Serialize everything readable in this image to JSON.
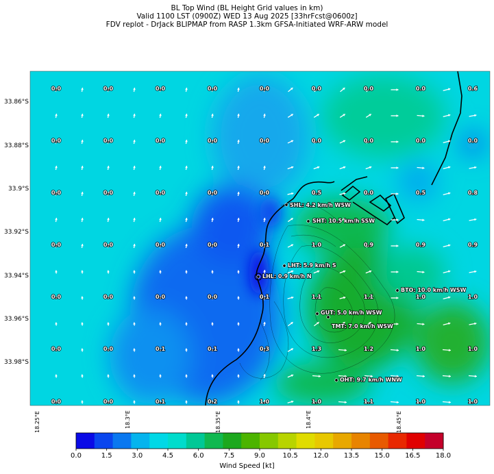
{
  "header": {
    "line1": "BL Top Wind (BL Height Grid values in km)",
    "line2": "Valid 1100 LST (0900Z) WED 13 Aug 2025 [33hrFcst@0600z]",
    "line3": "FDV replot - DrJack BLIPMAP from RASP 1.3km GFSA-Initiated WRF-ARW model"
  },
  "axes": {
    "y_labels": [
      "33.86°S",
      "33.88°S",
      "33.9°S",
      "33.92°S",
      "33.94°S",
      "33.96°S",
      "33.98°S"
    ],
    "x_labels": [
      "18.25°E",
      "18.3°E",
      "18.35°E",
      "18.4°E",
      "18.45°E"
    ]
  },
  "grid_values": [
    [
      "0.0",
      "0.0",
      "0.0",
      "0.0",
      "0.0",
      "0.0",
      "0.0",
      "0.0",
      "0.6"
    ],
    [
      "0.0",
      "0.0",
      "0.0",
      "0.0",
      "0.0",
      "0.0",
      "0.0",
      "0.0",
      "0.0"
    ],
    [
      "0.0",
      "0.0",
      "0.0",
      "0.0",
      "0.0",
      "0.5",
      "0.0",
      "0.5",
      "0.8"
    ],
    [
      "0.0",
      "0.0",
      "0.0",
      "0.0",
      "0.1",
      "1.0",
      "0.9",
      "0.9",
      "0.9"
    ],
    [
      "0.0",
      "0.0",
      "0.0",
      "0.0",
      "0.1",
      "1.1",
      "1.1",
      "1.0",
      "1.0"
    ],
    [
      "0.0",
      "0.0",
      "0.1",
      "0.1",
      "0.3",
      "1.3",
      "1.2",
      "1.0",
      "1.0"
    ],
    [
      "0.0",
      "0.0",
      "0.1",
      "0.2",
      "1.0",
      "1.0",
      "1.1",
      "1.0",
      "1.0"
    ]
  ],
  "stations": [
    {
      "label": "SHL: 4.2 km/h WSW"
    },
    {
      "label": "SHT: 10.5 km/h SSW"
    },
    {
      "label": "LHT: 5.9 km/h S"
    },
    {
      "label": "LHL: 0.9 km/h N"
    },
    {
      "label": "BTO: 10.0 km/h WSW"
    },
    {
      "label": "GUT: 5.0 km/h WSW"
    },
    {
      "label": "TMT: 7.0 km/h WSW"
    },
    {
      "label": "OHT: 9.7 km/h WNW"
    }
  ],
  "colorbar": {
    "title": "Wind Speed [kt]",
    "ticks": [
      "0.0",
      "1.5",
      "3.0",
      "4.5",
      "6.0",
      "7.5",
      "9.0",
      "10.5",
      "12.0",
      "13.5",
      "15.0",
      "16.5",
      "18.0"
    ],
    "min": 0,
    "max": 18,
    "colors": [
      "#0a0ae6",
      "#0a46ee",
      "#0a78f0",
      "#05b4ee",
      "#00d8e6",
      "#00dccc",
      "#00c896",
      "#10b850",
      "#1ca81e",
      "#4cb400",
      "#86c800",
      "#b8d400",
      "#e0dc00",
      "#e8c800",
      "#e8a800",
      "#e88400",
      "#e85a00",
      "#e82800",
      "#e00000",
      "#c4002a"
    ]
  },
  "colors": {
    "water_blue": "#1a4ef0",
    "land_green": "#22aa22",
    "cyan": "#00d8e0"
  }
}
